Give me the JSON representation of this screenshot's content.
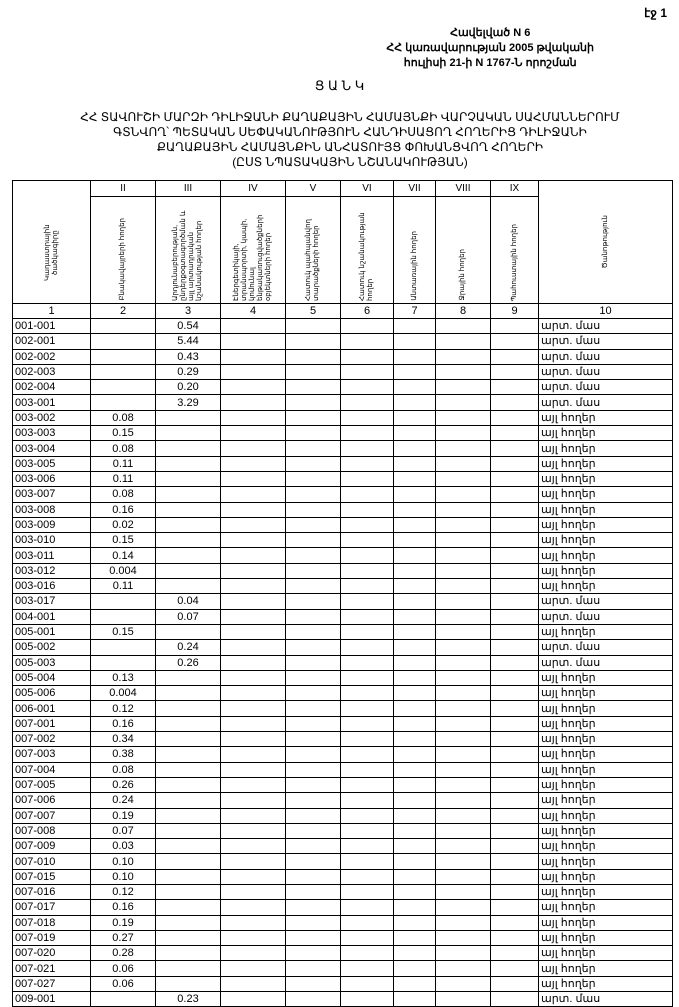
{
  "page_label": "էջ 1",
  "annex": [
    "Հավելված N 6",
    "ՀՀ կառավարության 2005 թվականի",
    "հուլիսի 21-ի N 1767-Ն որոշման"
  ],
  "title": "Ց Ա Ն Կ",
  "subtitle": [
    "ՀՀ ՏԱՎՈՒՇԻ ՄԱՐԶԻ ԴԻԼԻՋԱՆԻ ՔԱՂԱՔԱՅԻՆ ՀԱՄԱՅՆՔԻ ՎԱՐՉԱԿԱՆ ՍԱՀՄԱՆՆԵՐՈՒՄ",
    "ԳՏՆՎՈՂ՝ ՊԵՏԱԿԱՆ ՍԵՓԱԿԱՆՈՒԹՅՈՒՆ ՀԱՆԴԻՍԱՑՈՂ ՀՈՂԵՐԻՑ ԴԻԼԻՋԱՆԻ",
    "ՔԱՂԱՔԱՅԻՆ ՀԱՄԱՅՆՔԻՆ ԱՆՀԱՏՈՒՅՑ ՓՈԽԱՆՑՎՈՂ ՀՈՂԵՐԻ",
    "(ԸՍՏ ՆՊԱՏԱԿԱՅԻՆ ՆՇԱՆԱԿՈՒԹՅԱՆ)"
  ],
  "table": {
    "roman": [
      "",
      "II",
      "III",
      "IV",
      "V",
      "VI",
      "VII",
      "VIII",
      "IX",
      ""
    ],
    "headers": [
      "Կադաստրային ծածկագիրը",
      "Բնակավայրերի հողեր",
      "Արդյունաբերության, ընդերքօգտագործման և այլ արտադրական նշանակության հողեր",
      "Էներգետիկայի, տրանսպորտի, կապի, կոմունալ ենթակառուցվածքների օբյեկտների հողեր",
      "Հատուկ պահպանվող տարածքների հողեր",
      "Հատուկ նշանակության հողեր",
      "Անտառային հողեր",
      "Ջրային հողեր",
      "Պահուստային հողեր",
      "Ծանոթություն"
    ],
    "numbers": [
      "1",
      "2",
      "3",
      "4",
      "5",
      "6",
      "7",
      "8",
      "9",
      "10"
    ],
    "rows": [
      [
        "001-001",
        "",
        "0.54",
        "արտ. մաս"
      ],
      [
        "002-001",
        "",
        "5.44",
        "արտ. մաս"
      ],
      [
        "002-002",
        "",
        "0.43",
        "արտ. մաս"
      ],
      [
        "002-003",
        "",
        "0.29",
        "արտ. մաս"
      ],
      [
        "002-004",
        "",
        "0.20",
        "արտ. մաս"
      ],
      [
        "003-001",
        "",
        "3.29",
        "արտ. մաս"
      ],
      [
        "003-002",
        "0.08",
        "",
        "այլ հողեր"
      ],
      [
        "003-003",
        "0.15",
        "",
        "այլ հողեր"
      ],
      [
        "003-004",
        "0.08",
        "",
        "այլ հողեր"
      ],
      [
        "003-005",
        "0.11",
        "",
        "այլ հողեր"
      ],
      [
        "003-006",
        "0.11",
        "",
        "այլ հողեր"
      ],
      [
        "003-007",
        "0.08",
        "",
        "այլ հողեր"
      ],
      [
        "003-008",
        "0.16",
        "",
        "այլ հողեր"
      ],
      [
        "003-009",
        "0.02",
        "",
        "այլ հողեր"
      ],
      [
        "003-010",
        "0.15",
        "",
        "այլ հողեր"
      ],
      [
        "003-011",
        "0.14",
        "",
        "այլ հողեր"
      ],
      [
        "003-012",
        "0.004",
        "",
        "այլ հողեր"
      ],
      [
        "003-016",
        "0.11",
        "",
        "այլ հողեր"
      ],
      [
        "003-017",
        "",
        "0.04",
        "արտ. մաս"
      ],
      [
        "004-001",
        "",
        "0.07",
        "արտ. մաս"
      ],
      [
        "005-001",
        "0.15",
        "",
        "այլ հողեր"
      ],
      [
        "005-002",
        "",
        "0.24",
        "արտ. մաս"
      ],
      [
        "005-003",
        "",
        "0.26",
        "արտ. մաս"
      ],
      [
        "005-004",
        "0.13",
        "",
        "այլ հողեր"
      ],
      [
        "005-006",
        "0.004",
        "",
        "այլ հողեր"
      ],
      [
        "006-001",
        "0.12",
        "",
        "այլ հողեր"
      ],
      [
        "007-001",
        "0.16",
        "",
        "այլ հողեր"
      ],
      [
        "007-002",
        "0.34",
        "",
        "այլ հողեր"
      ],
      [
        "007-003",
        "0.38",
        "",
        "այլ հողեր"
      ],
      [
        "007-004",
        "0.08",
        "",
        "այլ հողեր"
      ],
      [
        "007-005",
        "0.26",
        "",
        "այլ հողեր"
      ],
      [
        "007-006",
        "0.24",
        "",
        "այլ հողեր"
      ],
      [
        "007-007",
        "0.19",
        "",
        "այլ հողեր"
      ],
      [
        "007-008",
        "0.07",
        "",
        "այլ հողեր"
      ],
      [
        "007-009",
        "0.03",
        "",
        "այլ հողեր"
      ],
      [
        "007-010",
        "0.10",
        "",
        "այլ հողեր"
      ],
      [
        "007-015",
        "0.10",
        "",
        "այլ հողեր"
      ],
      [
        "007-016",
        "0.12",
        "",
        "այլ հողեր"
      ],
      [
        "007-017",
        "0.16",
        "",
        "այլ հողեր"
      ],
      [
        "007-018",
        "0.19",
        "",
        "այլ հողեր"
      ],
      [
        "007-019",
        "0.27",
        "",
        "այլ հողեր"
      ],
      [
        "007-020",
        "0.28",
        "",
        "այլ հողեր"
      ],
      [
        "007-021",
        "0.06",
        "",
        "այլ հողեր"
      ],
      [
        "007-027",
        "0.06",
        "",
        "այլ հողեր"
      ],
      [
        "009-001",
        "",
        "0.23",
        "արտ. մաս"
      ]
    ]
  }
}
